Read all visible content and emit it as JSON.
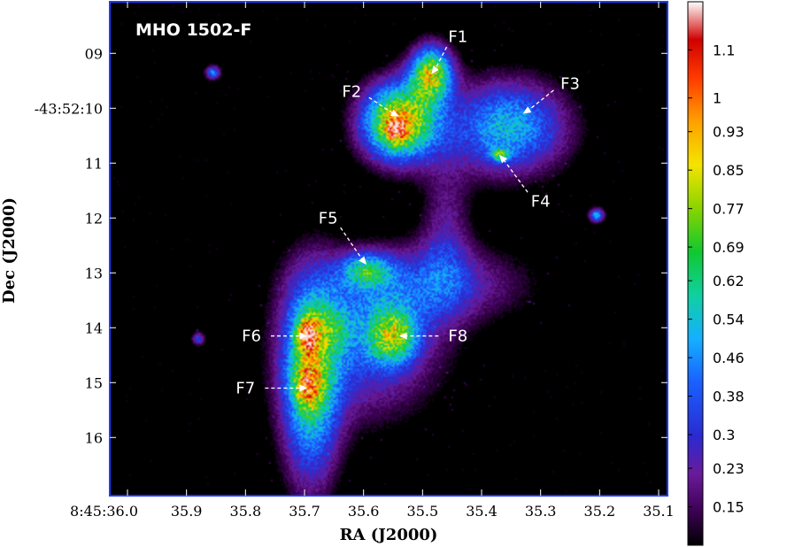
{
  "chart_data": {
    "type": "heatmap",
    "title": "MHO 1502-F",
    "xlabel": "RA (J2000)",
    "ylabel": "Dec (J2000)",
    "x_ticks": [
      {
        "v": 36.0,
        "label": "8:45:36.0"
      },
      {
        "v": 35.9,
        "label": "35.9"
      },
      {
        "v": 35.8,
        "label": "35.8"
      },
      {
        "v": 35.7,
        "label": "35.7"
      },
      {
        "v": 35.6,
        "label": "35.6"
      },
      {
        "v": 35.5,
        "label": "35.5"
      },
      {
        "v": 35.4,
        "label": "35.4"
      },
      {
        "v": 35.3,
        "label": "35.3"
      },
      {
        "v": 35.2,
        "label": "35.2"
      },
      {
        "v": 35.1,
        "label": "35.1"
      }
    ],
    "y_ticks": [
      {
        "v": 9,
        "label": "09"
      },
      {
        "v": 10,
        "label": "-43:52:10"
      },
      {
        "v": 11,
        "label": "11"
      },
      {
        "v": 12,
        "label": "12"
      },
      {
        "v": 13,
        "label": "13"
      },
      {
        "v": 14,
        "label": "14"
      },
      {
        "v": 15,
        "label": "15"
      },
      {
        "v": 16,
        "label": "16"
      }
    ],
    "xlim": [
      36.03,
      35.085
    ],
    "ylim": [
      8.06,
      17.06
    ],
    "colorbar": {
      "min": 0.07,
      "max": 1.2,
      "tick_values": [
        0.15,
        0.23,
        0.3,
        0.38,
        0.46,
        0.54,
        0.62,
        0.69,
        0.77,
        0.85,
        0.93,
        1.0,
        1.1
      ],
      "tick_labels": [
        "0.15",
        "0.23",
        "0.3",
        "0.38",
        "0.46",
        "0.54",
        "0.62",
        "0.69",
        "0.77",
        "0.85",
        "0.93",
        "1",
        "1.1"
      ],
      "stops": [
        [
          0.0,
          "#000000"
        ],
        [
          0.06,
          "#3a0050"
        ],
        [
          0.13,
          "#6a1a9a"
        ],
        [
          0.2,
          "#2a2ad0"
        ],
        [
          0.3,
          "#1a60ff"
        ],
        [
          0.38,
          "#15b0ff"
        ],
        [
          0.46,
          "#10d0a0"
        ],
        [
          0.54,
          "#10c830"
        ],
        [
          0.62,
          "#8ad400"
        ],
        [
          0.7,
          "#f4e400"
        ],
        [
          0.78,
          "#ffa000"
        ],
        [
          0.86,
          "#ff3a00"
        ],
        [
          0.93,
          "#d00000"
        ],
        [
          1.0,
          "#ffffff"
        ]
      ]
    },
    "features": [
      {
        "label": "F1",
        "ra": 35.485,
        "dec": 9.38,
        "text_ra": 35.44,
        "text_dec": 8.7
      },
      {
        "label": "F2",
        "ra": 35.54,
        "dec": 10.15,
        "text_ra": 35.62,
        "text_dec": 9.7
      },
      {
        "label": "F3",
        "ra": 35.33,
        "dec": 10.1,
        "text_ra": 35.25,
        "text_dec": 9.55
      },
      {
        "label": "F4",
        "ra": 35.37,
        "dec": 10.85,
        "text_ra": 35.3,
        "text_dec": 11.7
      },
      {
        "label": "F5",
        "ra": 35.595,
        "dec": 12.85,
        "text_ra": 35.66,
        "text_dec": 12.0
      },
      {
        "label": "F6",
        "ra": 35.695,
        "dec": 14.15,
        "text_ra": 35.79,
        "text_dec": 14.15
      },
      {
        "label": "F7",
        "ra": 35.695,
        "dec": 15.1,
        "text_ra": 35.8,
        "text_dec": 15.1
      },
      {
        "label": "F8",
        "ra": 35.54,
        "dec": 14.15,
        "text_ra": 35.44,
        "text_dec": 14.15
      }
    ],
    "blobs": [
      {
        "ra": 35.485,
        "dec": 9.35,
        "sra": 0.025,
        "sdec": 0.35,
        "amp": 0.75
      },
      {
        "ra": 35.54,
        "dec": 10.25,
        "sra": 0.045,
        "sdec": 0.5,
        "amp": 0.9
      },
      {
        "ra": 35.545,
        "dec": 10.4,
        "sra": 0.012,
        "sdec": 0.16,
        "amp": 0.35
      },
      {
        "ra": 35.355,
        "dec": 10.35,
        "sra": 0.07,
        "sdec": 0.6,
        "amp": 0.52
      },
      {
        "ra": 35.37,
        "dec": 10.85,
        "sra": 0.012,
        "sdec": 0.08,
        "amp": 0.38
      },
      {
        "ra": 35.46,
        "dec": 12.3,
        "sra": 0.03,
        "sdec": 1.0,
        "amp": 0.2
      },
      {
        "ra": 35.5,
        "dec": 13.2,
        "sra": 0.12,
        "sdec": 0.5,
        "amp": 0.3
      },
      {
        "ra": 35.595,
        "dec": 12.95,
        "sra": 0.03,
        "sdec": 0.22,
        "amp": 0.4
      },
      {
        "ra": 35.55,
        "dec": 14.15,
        "sra": 0.03,
        "sdec": 0.35,
        "amp": 0.55
      },
      {
        "ra": 35.6,
        "dec": 14.4,
        "sra": 0.09,
        "sdec": 0.9,
        "amp": 0.32
      },
      {
        "ra": 35.69,
        "dec": 15.0,
        "sra": 0.035,
        "sdec": 1.3,
        "amp": 0.58
      },
      {
        "ra": 35.695,
        "dec": 14.15,
        "sra": 0.012,
        "sdec": 0.22,
        "amp": 0.5
      },
      {
        "ra": 35.695,
        "dec": 15.05,
        "sra": 0.016,
        "sdec": 0.28,
        "amp": 0.38
      },
      {
        "ra": 35.66,
        "dec": 14.0,
        "sra": 0.03,
        "sdec": 0.3,
        "amp": 0.2
      },
      {
        "ra": 35.855,
        "dec": 9.35,
        "sra": 0.009,
        "sdec": 0.09,
        "amp": 0.45
      },
      {
        "ra": 35.205,
        "dec": 11.95,
        "sra": 0.009,
        "sdec": 0.09,
        "amp": 0.5
      },
      {
        "ra": 35.88,
        "dec": 14.2,
        "sra": 0.008,
        "sdec": 0.09,
        "amp": 0.32
      }
    ]
  }
}
